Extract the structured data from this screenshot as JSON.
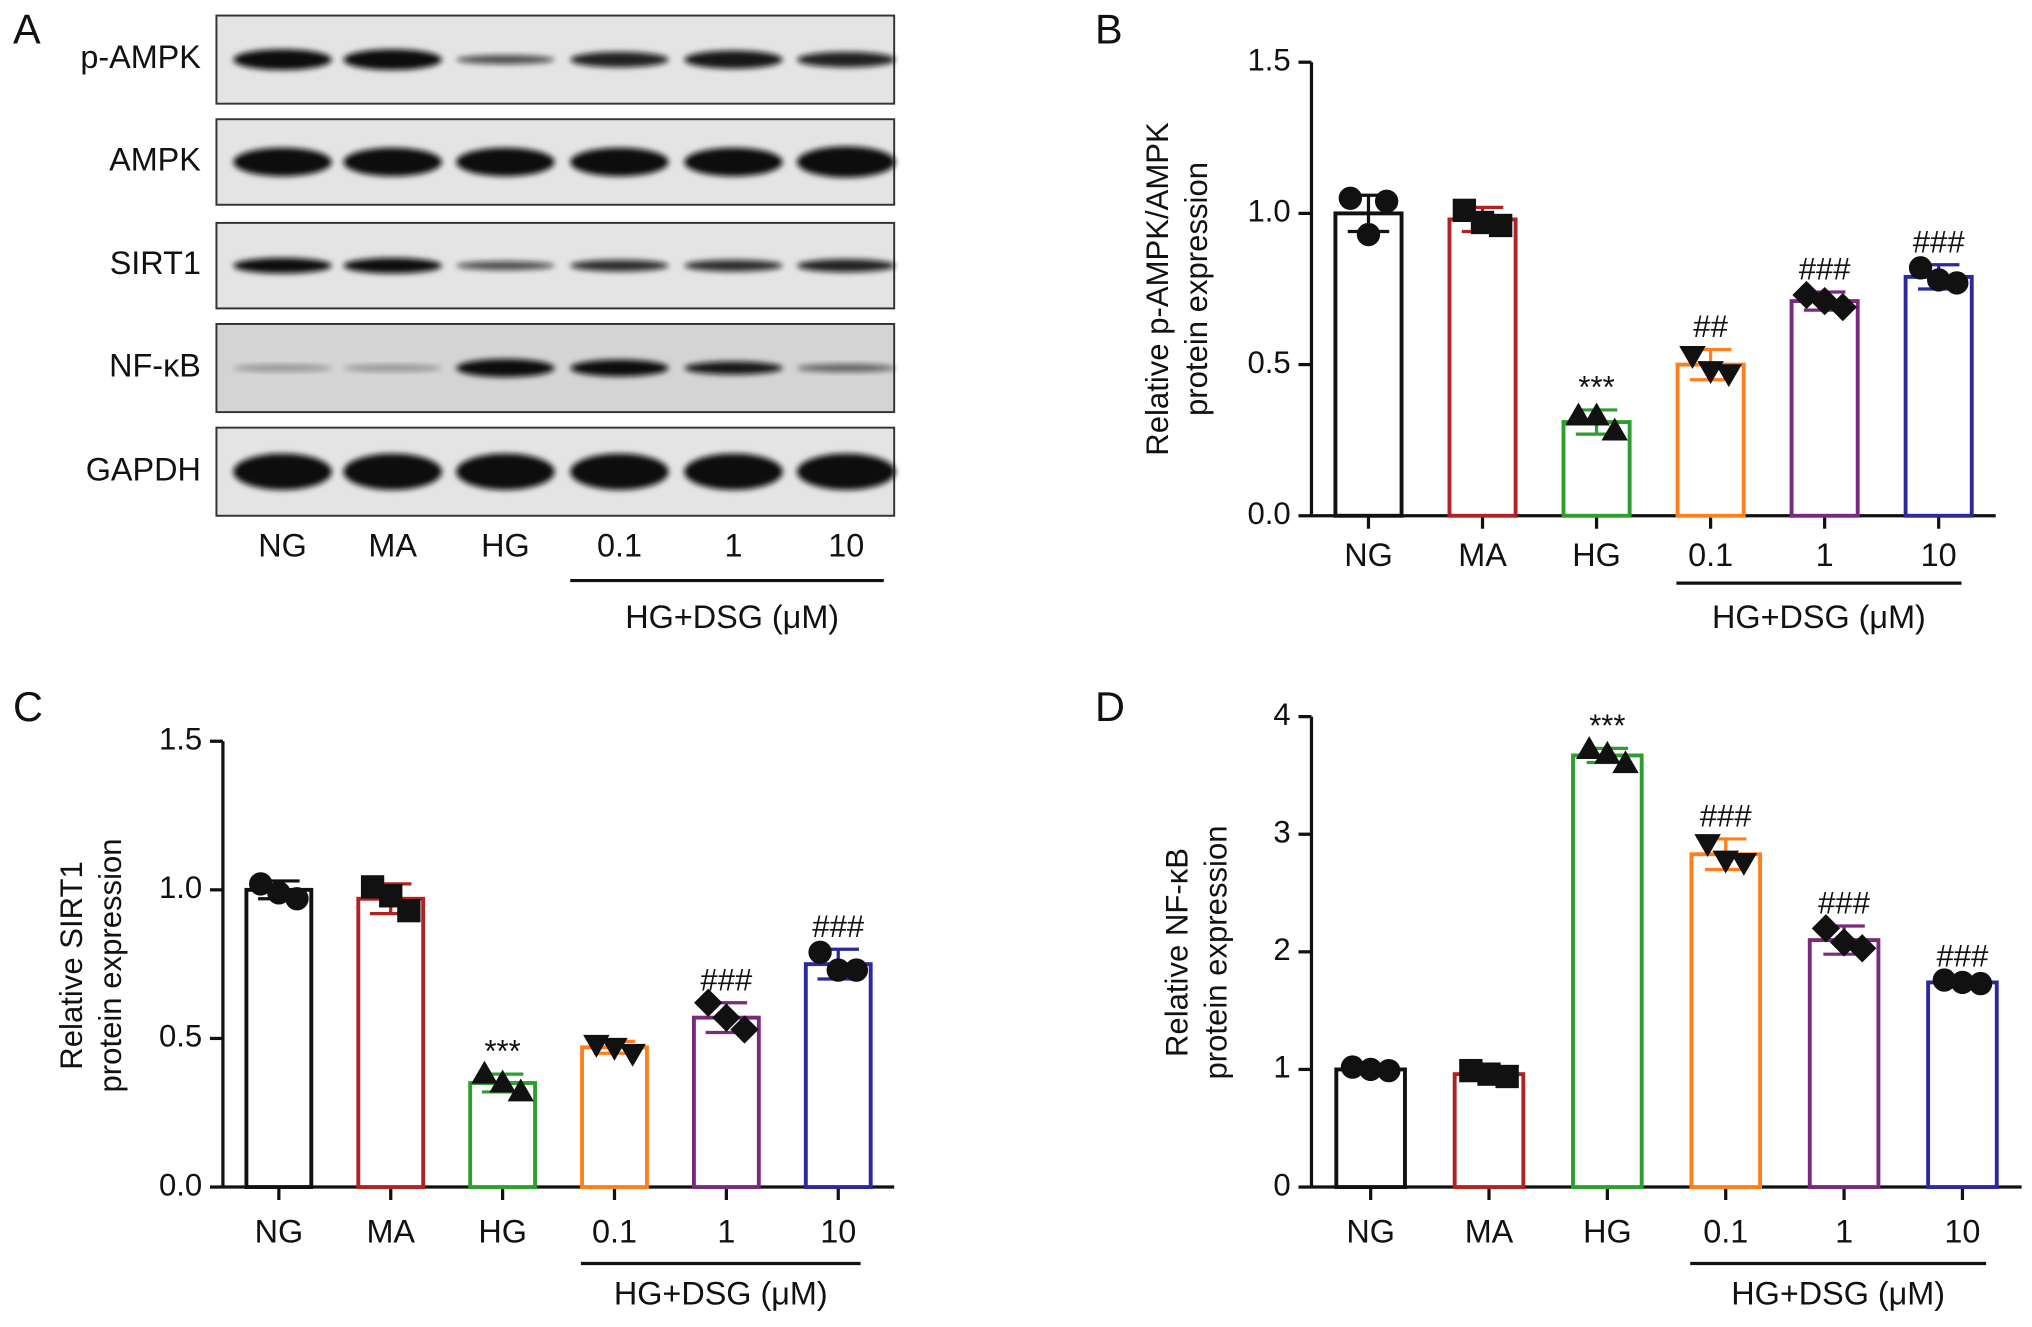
{
  "blot": {
    "panel_label": "A",
    "rows": [
      "p-AMPK",
      "AMPK",
      "SIRT1",
      "NF-κB",
      "GAPDH"
    ],
    "lanes": [
      "NG",
      "MA",
      "HG",
      "0.1",
      "1",
      "10"
    ],
    "group_label": "HG+DSG (μM)"
  },
  "chart_data": [
    {
      "type": "bar",
      "panel_label": "B",
      "ylabel": [
        "Relative p-AMPK/AMPK",
        "protein expression"
      ],
      "categories": [
        "NG",
        "MA",
        "HG",
        "0.1",
        "1",
        "10"
      ],
      "group_label": "HG+DSG (μM)",
      "values": [
        1.0,
        0.98,
        0.31,
        0.5,
        0.71,
        0.79
      ],
      "errors": [
        0.06,
        0.04,
        0.04,
        0.05,
        0.03,
        0.04
      ],
      "points": [
        [
          1.05,
          0.93,
          1.04
        ],
        [
          1.01,
          0.97,
          0.96
        ],
        [
          0.33,
          0.33,
          0.28
        ],
        [
          0.53,
          0.48,
          0.47
        ],
        [
          0.73,
          0.71,
          0.69
        ],
        [
          0.82,
          0.78,
          0.77
        ]
      ],
      "markers": [
        "circle",
        "square",
        "triangle-up",
        "triangle-down",
        "diamond",
        "circle"
      ],
      "colors": [
        "#111111",
        "#b22222",
        "#2e9e2e",
        "#ff7f1e",
        "#7b2a7b",
        "#2a2a9e"
      ],
      "annotations": [
        null,
        null,
        "***",
        "##",
        "###",
        "###"
      ],
      "ylim": [
        0,
        1.5
      ],
      "yticks": [
        {
          "value": 0,
          "label": "0.0"
        },
        {
          "value": 0.5,
          "label": "0.5"
        },
        {
          "value": 1,
          "label": "1.0"
        },
        {
          "value": 1.5,
          "label": "1.5"
        }
      ]
    },
    {
      "type": "bar",
      "panel_label": "C",
      "ylabel": [
        "Relative SIRT1",
        "protein expression"
      ],
      "categories": [
        "NG",
        "MA",
        "HG",
        "0.1",
        "1",
        "10"
      ],
      "group_label": "HG+DSG (μM)",
      "values": [
        1.0,
        0.97,
        0.35,
        0.47,
        0.57,
        0.75
      ],
      "errors": [
        0.03,
        0.05,
        0.03,
        0.02,
        0.05,
        0.05
      ],
      "points": [
        [
          1.02,
          0.99,
          0.97
        ],
        [
          1.01,
          0.98,
          0.93
        ],
        [
          0.38,
          0.35,
          0.32
        ],
        [
          0.48,
          0.47,
          0.45
        ],
        [
          0.62,
          0.57,
          0.53
        ],
        [
          0.79,
          0.73,
          0.73
        ]
      ],
      "markers": [
        "circle",
        "square",
        "triangle-up",
        "triangle-down",
        "diamond",
        "circle"
      ],
      "colors": [
        "#111111",
        "#b22222",
        "#2e9e2e",
        "#ff7f1e",
        "#7b2a7b",
        "#2a2a9e"
      ],
      "annotations": [
        null,
        null,
        "***",
        null,
        "###",
        "###"
      ],
      "ylim": [
        0,
        1.5
      ],
      "yticks": [
        {
          "value": 0,
          "label": "0.0"
        },
        {
          "value": 0.5,
          "label": "0.5"
        },
        {
          "value": 1,
          "label": "1.0"
        },
        {
          "value": 1.5,
          "label": "1.5"
        }
      ]
    },
    {
      "type": "bar",
      "panel_label": "D",
      "ylabel": [
        "Relative NF-κB",
        "protein expression"
      ],
      "categories": [
        "NG",
        "MA",
        "HG",
        "0.1",
        "1",
        "10"
      ],
      "group_label": "HG+DSG (μM)",
      "values": [
        1.0,
        0.96,
        3.67,
        2.83,
        2.1,
        1.74
      ],
      "errors": [
        0.03,
        0.04,
        0.06,
        0.13,
        0.12,
        0.03
      ],
      "points": [
        [
          1.02,
          1.0,
          0.99
        ],
        [
          0.99,
          0.96,
          0.94
        ],
        [
          3.72,
          3.68,
          3.6
        ],
        [
          2.92,
          2.78,
          2.76
        ],
        [
          2.2,
          2.08,
          2.03
        ],
        [
          1.76,
          1.74,
          1.73
        ]
      ],
      "markers": [
        "circle",
        "square",
        "triangle-up",
        "triangle-down",
        "diamond",
        "circle"
      ],
      "colors": [
        "#111111",
        "#b22222",
        "#2e9e2e",
        "#ff7f1e",
        "#7b2a7b",
        "#2a2a9e"
      ],
      "annotations": [
        null,
        null,
        "***",
        "###",
        "###",
        "###"
      ],
      "ylim": [
        0,
        4
      ],
      "yticks": [
        0,
        1,
        2,
        3,
        4
      ]
    }
  ]
}
